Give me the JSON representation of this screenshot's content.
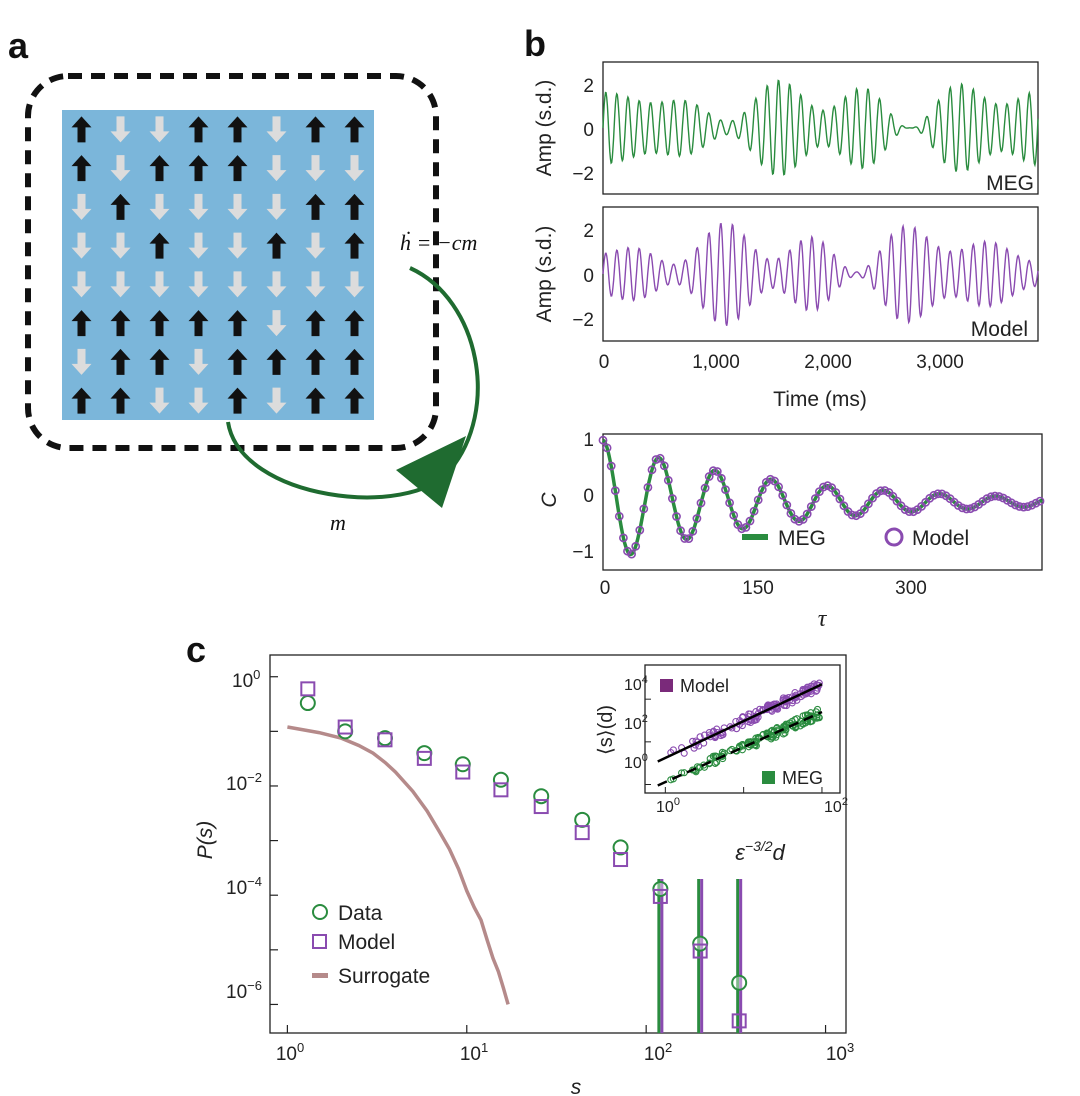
{
  "panels": {
    "a": "a",
    "b": "b",
    "c": "c"
  },
  "colors": {
    "meg": "#2a8c3f",
    "model": "#8a4bb0",
    "surrogate": "#b58a8a",
    "grid_bg": "#7bb6da",
    "arrow_dark": "#111111",
    "arrow_light": "#dcdcdc",
    "loop": "#1f6b30"
  },
  "panel_a": {
    "feedback_label": "ḣ = −cm",
    "m_label": "m",
    "spins": [
      [
        1,
        0,
        0,
        1,
        1,
        0,
        1,
        1
      ],
      [
        1,
        0,
        1,
        1,
        1,
        0,
        0,
        0
      ],
      [
        0,
        1,
        0,
        0,
        0,
        0,
        1,
        1
      ],
      [
        0,
        0,
        1,
        0,
        0,
        1,
        0,
        1
      ],
      [
        0,
        0,
        0,
        0,
        0,
        0,
        0,
        0
      ],
      [
        1,
        1,
        1,
        1,
        1,
        0,
        1,
        1
      ],
      [
        0,
        1,
        1,
        0,
        1,
        1,
        1,
        1
      ],
      [
        1,
        1,
        0,
        0,
        1,
        0,
        1,
        1
      ]
    ]
  },
  "chart_data": [
    {
      "id": "b-top",
      "type": "line",
      "ylabel": "Amp (s.d.)",
      "series_label": "MEG",
      "ylim": [
        -3,
        3
      ],
      "xlim": [
        0,
        3800
      ],
      "yticks": [
        "2",
        "0",
        "−2"
      ],
      "ytick_values": [
        2,
        0,
        -2
      ]
    },
    {
      "id": "b-mid",
      "type": "line",
      "ylabel": "Amp (s.d.)",
      "xlabel": "Time (ms)",
      "series_label": "Model",
      "ylim": [
        -3,
        3
      ],
      "xlim": [
        0,
        3800
      ],
      "yticks": [
        "2",
        "0",
        "−2"
      ],
      "ytick_values": [
        2,
        0,
        -2
      ],
      "xticks": [
        "0",
        "1,000",
        "2,000",
        "3,000"
      ],
      "xtick_values": [
        0,
        1000,
        2000,
        3000
      ]
    },
    {
      "id": "b-bottom",
      "type": "line",
      "ylabel": "C",
      "xlabel": "τ",
      "xlim": [
        0,
        430
      ],
      "ylim": [
        -1.1,
        1.1
      ],
      "yticks": [
        "1",
        "0",
        "−1"
      ],
      "ytick_values": [
        1,
        0,
        -1
      ],
      "xticks": [
        "0",
        "150",
        "300"
      ],
      "xtick_values": [
        0,
        150,
        300
      ],
      "legend": [
        "MEG",
        "Model"
      ],
      "legend_position": "lower-center",
      "autocorr_period": 55,
      "autocorr_decay": 165
    },
    {
      "id": "c-main",
      "type": "scatter",
      "xlabel": "s",
      "ylabel": "P(s)",
      "x_scale": "log",
      "y_scale": "log",
      "xlim": [
        0.8,
        1300
      ],
      "ylim": [
        3e-07,
        2.5
      ],
      "xticks": [
        "10",
        "10",
        "10",
        "10"
      ],
      "xtick_sup": [
        "0",
        "1",
        "2",
        "3"
      ],
      "xtick_values": [
        1,
        10,
        100,
        1000
      ],
      "yticks": [
        "10",
        "10",
        "10",
        "10"
      ],
      "ytick_sup": [
        "0",
        "−2",
        "−4",
        "−6"
      ],
      "ytick_values": [
        1,
        0.01,
        0.0001,
        1e-06
      ],
      "legend": [
        "Data",
        "Model",
        "Surrogate"
      ],
      "legend_position": "lower-left",
      "data": {
        "x": [
          1.3,
          2.1,
          3.5,
          5.8,
          9.5,
          15.5,
          26,
          44,
          72,
          120,
          200,
          330
        ],
        "y": [
          0.33,
          0.1,
          0.075,
          0.04,
          0.025,
          0.013,
          0.0065,
          0.0024,
          0.00075,
          0.00013,
          1.3e-05,
          2.5e-06
        ]
      },
      "model": {
        "x": [
          1.3,
          2.1,
          3.5,
          5.8,
          9.5,
          15.5,
          26,
          44,
          72,
          120,
          200,
          330
        ],
        "y": [
          0.6,
          0.12,
          0.07,
          0.032,
          0.018,
          0.0085,
          0.0042,
          0.0014,
          0.00045,
          9.5e-05,
          9.5e-06,
          5e-07
        ]
      },
      "surrogate": {
        "x": [
          1,
          1.5,
          2,
          2.5,
          3,
          3.5,
          4,
          5,
          6,
          7,
          8,
          9,
          10,
          11,
          12,
          13,
          14,
          15,
          16,
          17
        ],
        "y": [
          0.12,
          0.095,
          0.075,
          0.055,
          0.04,
          0.027,
          0.018,
          0.008,
          0.0035,
          0.0015,
          0.0007,
          0.0003,
          0.00012,
          6e-05,
          3.5e-05,
          1.5e-05,
          7e-06,
          4e-06,
          2e-06,
          1e-06
        ]
      },
      "error_bars_x": [
        120,
        200,
        330
      ]
    },
    {
      "id": "c-inset",
      "type": "scatter",
      "xlabel": "ε−3/2d",
      "ylabel": "⟨s⟩(d)",
      "x_scale": "log",
      "y_scale": "log",
      "xlim": [
        0.55,
        170
      ],
      "ylim": [
        0.4,
        400000
      ],
      "xticks": [
        "10",
        "10"
      ],
      "xtick_sup": [
        "0",
        "2"
      ],
      "xtick_values": [
        1,
        100
      ],
      "yticks": [
        "10",
        "10",
        "10"
      ],
      "ytick_sup": [
        "0",
        "2",
        "4"
      ],
      "ytick_values": [
        1,
        100,
        10000
      ],
      "legend": [
        "Model",
        "MEG"
      ],
      "model_fit": {
        "x": [
          0.8,
          100
        ],
        "y": [
          12,
          50000
        ]
      },
      "meg_fit": {
        "x": [
          0.8,
          100
        ],
        "y": [
          0.9,
          2500
        ]
      }
    }
  ]
}
